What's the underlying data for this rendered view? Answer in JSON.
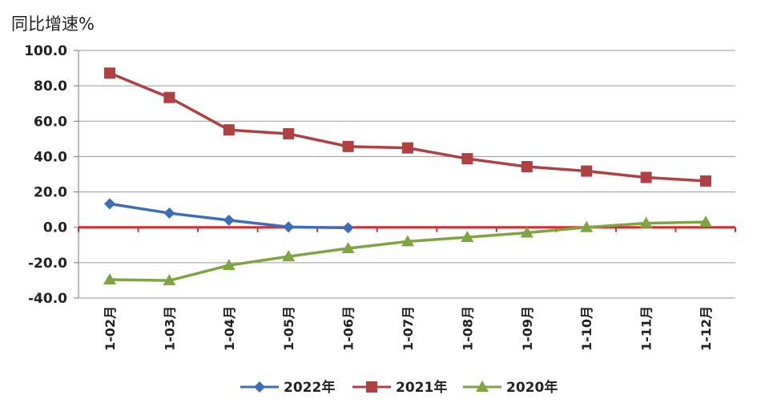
{
  "chart_data": {
    "type": "line",
    "ylabel": "同比增速%",
    "ylim": [
      -40,
      100
    ],
    "yticks": [
      "100.0",
      "80.0",
      "60.0",
      "40.0",
      "20.0",
      "0.0",
      "-20.0",
      "-40.0"
    ],
    "ytick_values": [
      100,
      80,
      60,
      40,
      20,
      0,
      -20,
      -40
    ],
    "categories": [
      "1-02月",
      "1-03月",
      "1-04月",
      "1-05月",
      "1-06月",
      "1-07月",
      "1-08月",
      "1-09月",
      "1-10月",
      "1-11月",
      "1-12月"
    ],
    "grid": true,
    "legend_position": "bottom",
    "zero_line_color": "#d92b2b",
    "series": [
      {
        "name": "2022年",
        "color": "#3e6fb6",
        "marker": "diamond",
        "values": [
          13.3,
          8.0,
          4.0,
          0.2,
          -0.3,
          null,
          null,
          null,
          null,
          null,
          null
        ]
      },
      {
        "name": "2021年",
        "color": "#b04143",
        "marker": "square",
        "values": [
          87.2,
          73.4,
          55.1,
          52.9,
          45.7,
          44.9,
          38.8,
          34.3,
          31.8,
          28.2,
          26.2
        ]
      },
      {
        "name": "2020年",
        "color": "#7ea542",
        "marker": "triangle",
        "values": [
          -29.6,
          -30.1,
          -21.5,
          -16.5,
          -11.9,
          -8.0,
          -5.6,
          -3.1,
          0.0,
          2.3,
          3.0
        ]
      }
    ]
  }
}
